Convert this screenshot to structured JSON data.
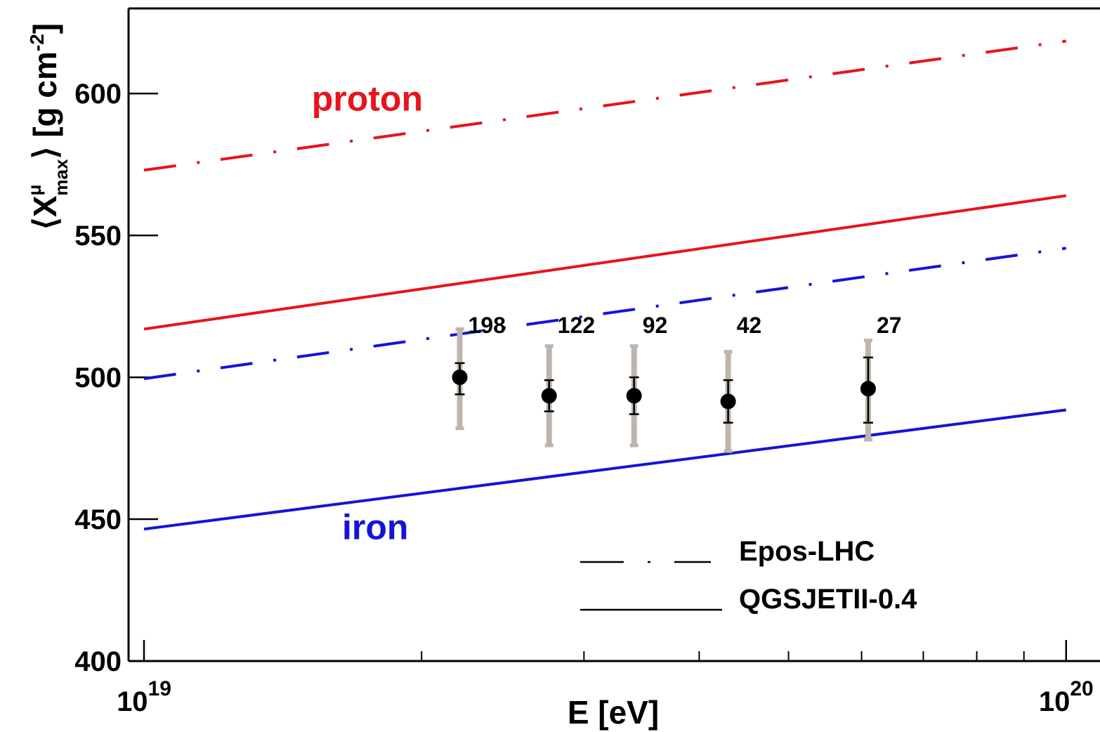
{
  "chart_data": {
    "type": "line",
    "xlabel": "E [eV]",
    "ylabel": {
      "main": "X",
      "sup": "μ",
      "sub": "max",
      "unit": " [g cm",
      "unit_exp": "-2",
      "unit_close": "]"
    },
    "x_scale": "log",
    "xlim": [
      1e+19,
      1.05e+20
    ],
    "ylim": [
      400,
      630
    ],
    "x_ticks": [
      {
        "value": 1e+19,
        "base": "10",
        "exp": "19"
      },
      {
        "value": 1e+20,
        "base": "10",
        "exp": "20"
      }
    ],
    "y_ticks": [
      {
        "value": 400,
        "label": "400"
      },
      {
        "value": 450,
        "label": "450"
      },
      {
        "value": 500,
        "label": "500"
      },
      {
        "value": 550,
        "label": "550"
      },
      {
        "value": 600,
        "label": "600"
      }
    ],
    "grid": false,
    "series": [
      {
        "group": "proton",
        "model": "Epos-LHC",
        "style": "dashdot",
        "color": "#e8141b",
        "x": [
          1e+19,
          1e+20
        ],
        "y": [
          573,
          618.5
        ]
      },
      {
        "group": "proton",
        "model": "QGSJETII-0.4",
        "style": "solid",
        "color": "#e8141b",
        "x": [
          1e+19,
          1e+20
        ],
        "y": [
          517,
          564
        ]
      },
      {
        "group": "iron",
        "model": "Epos-LHC",
        "style": "dashdot",
        "color": "#1414d8",
        "x": [
          1e+19,
          1e+20
        ],
        "y": [
          499.5,
          545.5
        ]
      },
      {
        "group": "iron",
        "model": "QGSJETII-0.4",
        "style": "solid",
        "color": "#1414d8",
        "x": [
          1e+19,
          1e+20
        ],
        "y": [
          446.5,
          488.5
        ]
      }
    ],
    "data_points": [
      {
        "x": 2.2e+19,
        "y": 500,
        "stat": [
          494,
          505
        ],
        "sys": [
          482,
          517
        ],
        "count": "198"
      },
      {
        "x": 2.75e+19,
        "y": 493.5,
        "stat": [
          488,
          499
        ],
        "sys": [
          476,
          511
        ],
        "count": "122"
      },
      {
        "x": 3.4e+19,
        "y": 493.5,
        "stat": [
          487,
          500
        ],
        "sys": [
          476,
          511
        ],
        "count": "92"
      },
      {
        "x": 4.3e+19,
        "y": 491.5,
        "stat": [
          484,
          499
        ],
        "sys": [
          474,
          509
        ],
        "count": "42"
      },
      {
        "x": 6.1e+19,
        "y": 496,
        "stat": [
          484,
          507
        ],
        "sys": [
          478,
          513
        ],
        "count": "27"
      }
    ],
    "annotations": [
      {
        "text": "proton",
        "color": "#e8141b",
        "x": 1.52e+19,
        "y": 594
      },
      {
        "text": "iron",
        "color": "#1414d8",
        "x": 1.64e+19,
        "y": 443
      }
    ],
    "legend": {
      "placement": "bottom-right",
      "entries": [
        {
          "label": "Epos-LHC",
          "style": "dashdot"
        },
        {
          "label": "QGSJETII-0.4",
          "style": "solid"
        }
      ]
    },
    "colors": {
      "proton": "#e8141b",
      "iron": "#1414d8",
      "marker": "#000000",
      "sys_error": "#bdb5ad",
      "axis": "#000000"
    }
  }
}
